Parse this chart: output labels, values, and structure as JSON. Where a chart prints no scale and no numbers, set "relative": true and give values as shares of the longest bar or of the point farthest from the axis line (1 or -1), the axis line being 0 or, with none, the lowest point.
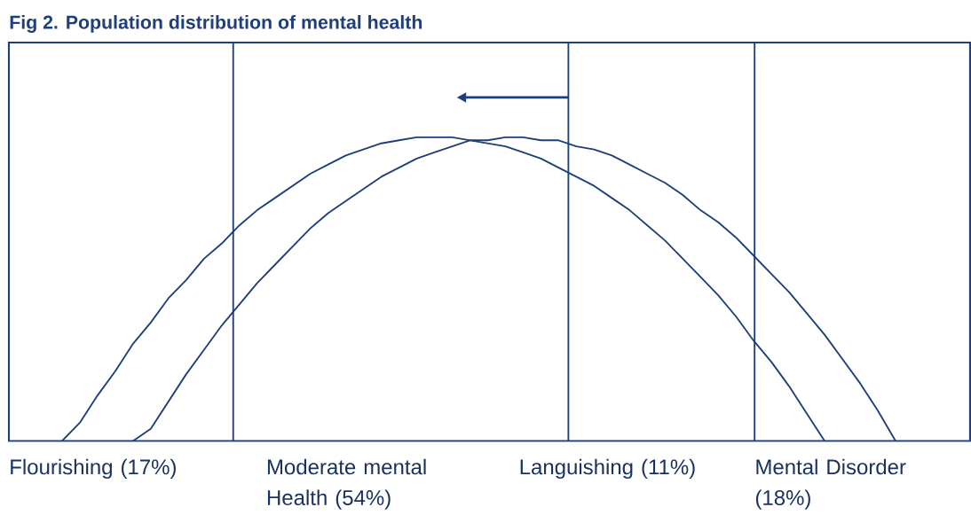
{
  "chart_data": {
    "type": "line",
    "title": "Fig 2. Population distribution of mental health",
    "relative": true,
    "categories": [
      null,
      null,
      null,
      null,
      null,
      null,
      null,
      null,
      null,
      null,
      null,
      null,
      null,
      null,
      null,
      null,
      null,
      null,
      null,
      null,
      null,
      null,
      null,
      null,
      null,
      null,
      null,
      null,
      null,
      null,
      null,
      null,
      null,
      null,
      null,
      null,
      null,
      null,
      null,
      null,
      null,
      null,
      null,
      null,
      null,
      null,
      null,
      null,
      null,
      null,
      null,
      null,
      null,
      null,
      null
    ],
    "series": [
      {
        "color": "#1f3f7a",
        "values": [
          null,
          null,
          null,
          0,
          0.06,
          0.15,
          0.23,
          0.32,
          0.39,
          0.47,
          0.53,
          0.6,
          0.65,
          0.71,
          0.76,
          0.8,
          0.84,
          0.88,
          0.91,
          0.94,
          0.96,
          0.98,
          0.99,
          1.0,
          1.0,
          1.0,
          0.99,
          0.98,
          0.97,
          0.95,
          0.93,
          0.9,
          0.87,
          0.84,
          0.8,
          0.76,
          0.71,
          0.66,
          0.6,
          0.54,
          0.48,
          0.41,
          0.33,
          0.26,
          0.18,
          0.09,
          0,
          null,
          null,
          null,
          null,
          null,
          null,
          null,
          null
        ]
      },
      {
        "color": "#1f3f7a",
        "values": [
          null,
          null,
          null,
          null,
          null,
          null,
          null,
          0,
          0.04,
          0.13,
          0.22,
          0.3,
          0.38,
          0.45,
          0.52,
          0.58,
          0.64,
          0.7,
          0.75,
          0.79,
          0.83,
          0.87,
          0.9,
          0.93,
          0.95,
          0.97,
          0.99,
          0.99,
          1.0,
          1.0,
          0.99,
          0.99,
          0.97,
          0.96,
          0.94,
          0.91,
          0.88,
          0.85,
          0.81,
          0.76,
          0.72,
          0.67,
          0.61,
          0.55,
          0.49,
          0.42,
          0.35,
          0.27,
          0.19,
          0.1,
          0,
          null,
          null,
          null,
          null
        ]
      }
    ],
    "annotations": [
      "Flourishing (17%)",
      "Moderate mental Health (54%)",
      "Languishing (11%)",
      "Mental Disorder (18%)"
    ],
    "marker": "none",
    "line_style": "solid"
  }
}
